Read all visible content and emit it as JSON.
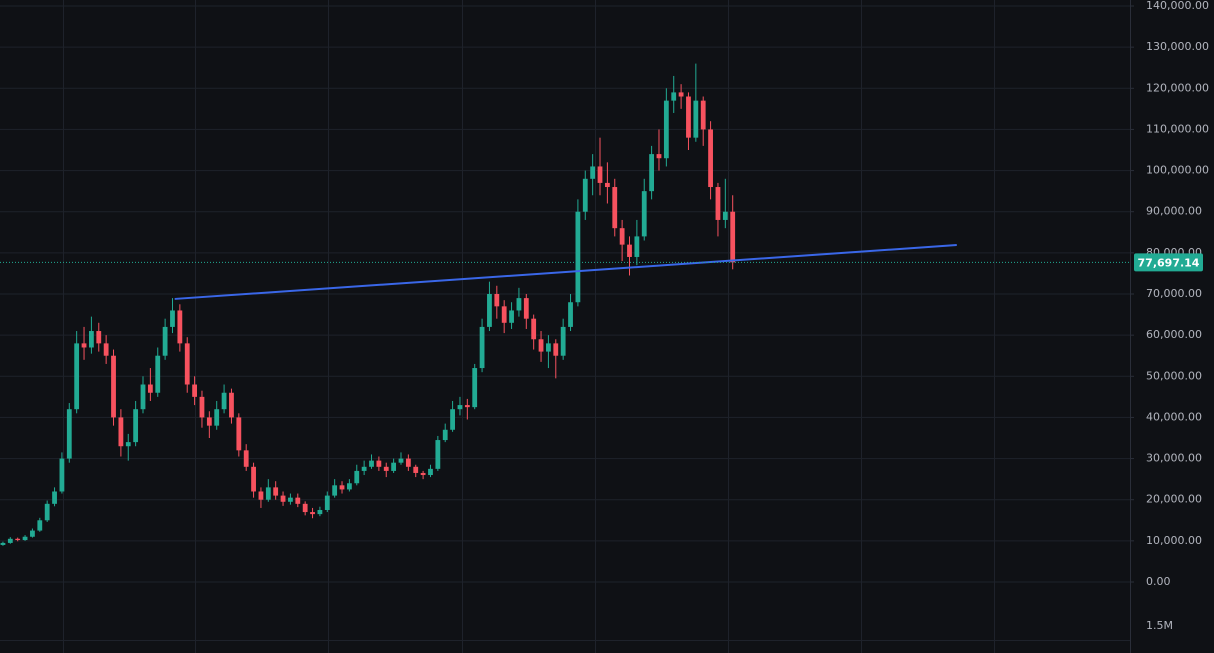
{
  "chart_data": {
    "type": "candlestick",
    "up_color": "#22ab94",
    "down_color": "#f7525f",
    "grid": true,
    "ylim": [
      0,
      140000
    ],
    "xlim": [
      -0.4,
      152.9
    ],
    "yticks": [
      {
        "value": 0,
        "label": "0.00"
      },
      {
        "value": 10000,
        "label": "10,000.00"
      },
      {
        "value": 20000,
        "label": "20,000.00"
      },
      {
        "value": 30000,
        "label": "30,000.00"
      },
      {
        "value": 40000,
        "label": "40,000.00"
      },
      {
        "value": 50000,
        "label": "50,000.00"
      },
      {
        "value": 60000,
        "label": "60,000.00"
      },
      {
        "value": 70000,
        "label": "70,000.00"
      },
      {
        "value": 80000,
        "label": "80,000.00"
      },
      {
        "value": 90000,
        "label": "90,000.00"
      },
      {
        "value": 100000,
        "label": "100,000.00"
      },
      {
        "value": 110000,
        "label": "110,000.00"
      },
      {
        "value": 120000,
        "label": "120,000.00"
      },
      {
        "value": 130000,
        "label": "130,000.00"
      },
      {
        "value": 140000,
        "label": "140,000.00"
      }
    ],
    "volume_tick_label": "1.5M",
    "last_price": {
      "value": 77697.14,
      "label": "77,697.14",
      "color": "#22ab94"
    },
    "trendline": {
      "color": "#3a67e8",
      "x": [
        23.3,
        129.4
      ],
      "y": [
        68800,
        81900
      ]
    },
    "candles": [
      [
        9000,
        9800,
        8800,
        9500
      ],
      [
        9500,
        10900,
        9300,
        10500
      ],
      [
        10500,
        10800,
        9900,
        10200
      ],
      [
        10200,
        11400,
        10000,
        11000
      ],
      [
        11000,
        13000,
        10800,
        12500
      ],
      [
        12500,
        15600,
        12200,
        15000
      ],
      [
        15000,
        19800,
        14600,
        19000
      ],
      [
        19000,
        23000,
        18400,
        22000
      ],
      [
        22000,
        31500,
        21500,
        30000
      ],
      [
        30000,
        43500,
        29000,
        42000
      ],
      [
        42000,
        61000,
        41000,
        58000
      ],
      [
        58000,
        62000,
        54000,
        57000
      ],
      [
        57000,
        64500,
        55500,
        61000
      ],
      [
        61000,
        63000,
        56000,
        58000
      ],
      [
        58000,
        60000,
        53000,
        55000
      ],
      [
        55000,
        56500,
        38000,
        40000
      ],
      [
        40000,
        42000,
        30500,
        33000
      ],
      [
        33000,
        36000,
        29500,
        34000
      ],
      [
        34000,
        44000,
        33000,
        42000
      ],
      [
        42000,
        50000,
        41000,
        48000
      ],
      [
        48000,
        52000,
        44000,
        46000
      ],
      [
        46000,
        57000,
        45000,
        55000
      ],
      [
        55000,
        64000,
        54000,
        62000
      ],
      [
        62000,
        69000,
        60500,
        66000
      ],
      [
        66000,
        67500,
        56000,
        58000
      ],
      [
        58000,
        59500,
        46000,
        48000
      ],
      [
        48000,
        50000,
        43000,
        45000
      ],
      [
        45000,
        46500,
        37500,
        40000
      ],
      [
        40000,
        41500,
        35000,
        38000
      ],
      [
        38000,
        44000,
        37000,
        42000
      ],
      [
        42000,
        48000,
        41000,
        46000
      ],
      [
        46000,
        47000,
        38500,
        40000
      ],
      [
        40000,
        41000,
        30500,
        32000
      ],
      [
        32000,
        33500,
        27000,
        28000
      ],
      [
        28000,
        29000,
        20500,
        22000
      ],
      [
        22000,
        23000,
        18000,
        20000
      ],
      [
        20000,
        25000,
        19500,
        23000
      ],
      [
        23000,
        24500,
        20000,
        21000
      ],
      [
        21000,
        22000,
        18500,
        19500
      ],
      [
        19500,
        21500,
        18800,
        20500
      ],
      [
        20500,
        21500,
        18200,
        19000
      ],
      [
        19000,
        19600,
        16200,
        17000
      ],
      [
        17000,
        18000,
        15500,
        16500
      ],
      [
        16500,
        18300,
        16000,
        17500
      ],
      [
        17500,
        22000,
        17000,
        21000
      ],
      [
        21000,
        25000,
        20500,
        23500
      ],
      [
        23500,
        24500,
        21500,
        22500
      ],
      [
        22500,
        25000,
        22000,
        24000
      ],
      [
        24000,
        28500,
        23500,
        27000
      ],
      [
        27000,
        29500,
        26000,
        28000
      ],
      [
        28000,
        31000,
        27500,
        29500
      ],
      [
        29500,
        30500,
        27000,
        28000
      ],
      [
        28000,
        29000,
        25500,
        27000
      ],
      [
        27000,
        30000,
        26500,
        29000
      ],
      [
        29000,
        31500,
        28500,
        30000
      ],
      [
        30000,
        31000,
        27000,
        28000
      ],
      [
        28000,
        28500,
        25500,
        26500
      ],
      [
        26500,
        27000,
        25000,
        26000
      ],
      [
        26000,
        28500,
        25500,
        27500
      ],
      [
        27500,
        35500,
        27000,
        34500
      ],
      [
        34500,
        38500,
        34000,
        37000
      ],
      [
        37000,
        44000,
        36500,
        42000
      ],
      [
        42000,
        45000,
        40500,
        43000
      ],
      [
        43000,
        44500,
        39500,
        42500
      ],
      [
        42500,
        53000,
        42000,
        52000
      ],
      [
        52000,
        64000,
        51000,
        62000
      ],
      [
        62000,
        73000,
        61000,
        70000
      ],
      [
        70000,
        72000,
        64000,
        67000
      ],
      [
        67000,
        68500,
        60500,
        63000
      ],
      [
        63000,
        68000,
        61500,
        66000
      ],
      [
        66000,
        71500,
        64500,
        69000
      ],
      [
        69000,
        70000,
        61500,
        64000
      ],
      [
        64000,
        65000,
        56500,
        59000
      ],
      [
        59000,
        61000,
        53500,
        56000
      ],
      [
        56000,
        60000,
        52000,
        58000
      ],
      [
        58000,
        59000,
        49500,
        55000
      ],
      [
        55000,
        64000,
        54000,
        62000
      ],
      [
        62000,
        70000,
        61000,
        68000
      ],
      [
        68000,
        93000,
        67000,
        90000
      ],
      [
        90000,
        100000,
        88000,
        98000
      ],
      [
        98000,
        104000,
        94000,
        101000
      ],
      [
        101000,
        108000,
        94000,
        97000
      ],
      [
        97000,
        102000,
        92000,
        96000
      ],
      [
        96000,
        98000,
        84000,
        86000
      ],
      [
        86000,
        88000,
        78000,
        82000
      ],
      [
        82000,
        84000,
        74500,
        79000
      ],
      [
        79000,
        88000,
        77000,
        84000
      ],
      [
        84000,
        98000,
        83000,
        95000
      ],
      [
        95000,
        106000,
        93000,
        104000
      ],
      [
        104000,
        110000,
        100000,
        103000
      ],
      [
        103000,
        120000,
        101000,
        117000
      ],
      [
        117000,
        123000,
        114000,
        119000
      ],
      [
        119000,
        121000,
        115000,
        118000
      ],
      [
        118000,
        119000,
        105000,
        108000
      ],
      [
        108000,
        126000,
        107000,
        117000
      ],
      [
        117000,
        118000,
        106000,
        110000
      ],
      [
        110000,
        112000,
        93000,
        96000
      ],
      [
        96000,
        97000,
        84000,
        88000
      ],
      [
        88000,
        98000,
        86000,
        90000
      ],
      [
        90000,
        94000,
        76000,
        77697.14
      ]
    ]
  }
}
